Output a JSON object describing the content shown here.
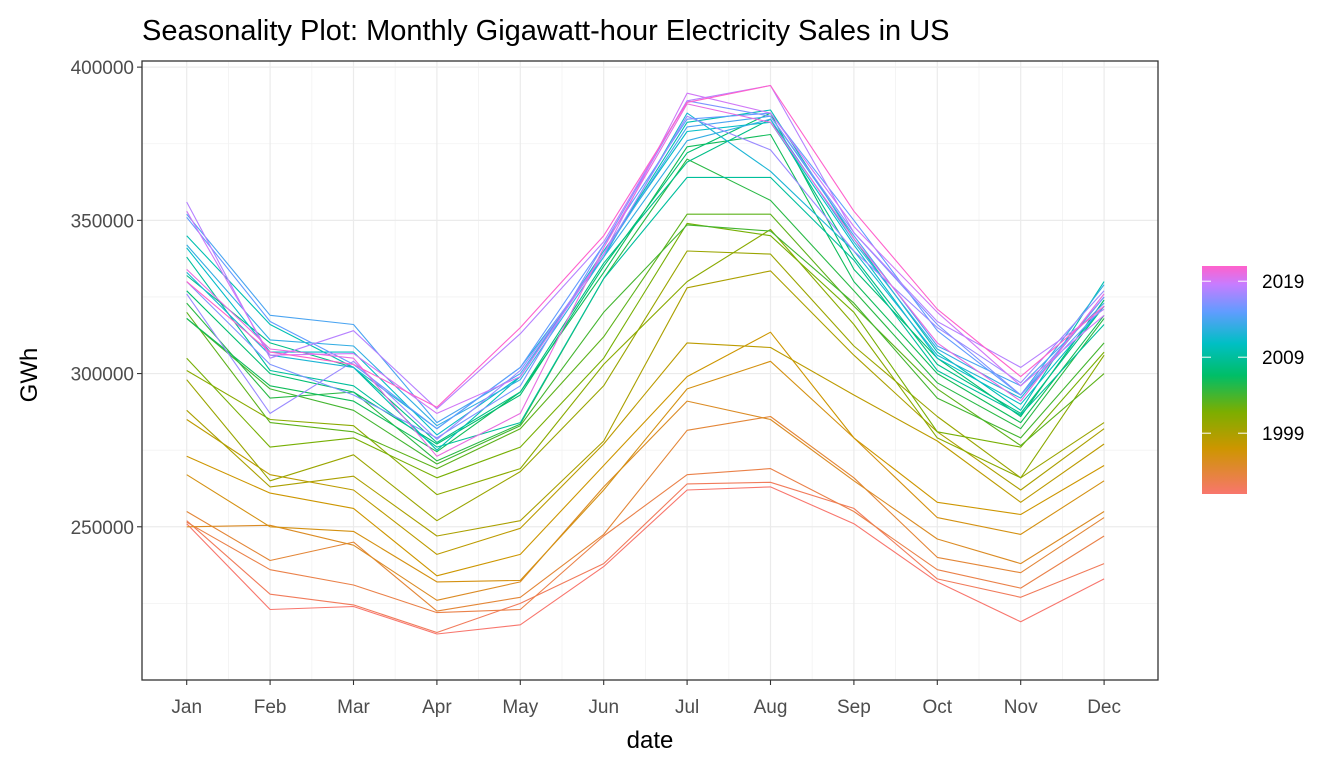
{
  "chart_data": {
    "type": "line",
    "title": "Seasonality Plot: Monthly Gigawatt-hour Electricity Sales in US",
    "xlabel": "date",
    "ylabel": "GWh",
    "categories": [
      "Jan",
      "Feb",
      "Mar",
      "Apr",
      "May",
      "Jun",
      "Jul",
      "Aug",
      "Sep",
      "Oct",
      "Nov",
      "Dec"
    ],
    "ylim": [
      200000,
      402000
    ],
    "yticks": [
      250000,
      300000,
      350000,
      400000
    ],
    "ytick_labels": [
      "250000",
      "300000",
      "350000",
      "400000"
    ],
    "grid": true,
    "legend": {
      "position": "right",
      "type": "colorbar",
      "range": [
        1991,
        2021
      ],
      "ticks": [
        1999,
        2009,
        2019
      ],
      "tick_labels": [
        "1999",
        "2009",
        "2019"
      ]
    },
    "series": [
      {
        "year": 1991,
        "values": [
          251000,
          223000,
          224000,
          215000,
          218000,
          237000,
          262000,
          263000,
          251000,
          232000,
          219000,
          233000
        ]
      },
      {
        "year": 1992,
        "values": [
          252000,
          228000,
          224500,
          215500,
          225000,
          238000,
          264000,
          264500,
          256000,
          233000,
          227000,
          238000
        ]
      },
      {
        "year": 1993,
        "values": [
          251500,
          236000,
          231000,
          222000,
          223000,
          247000,
          267000,
          269000,
          255000,
          236000,
          230000,
          247000
        ]
      },
      {
        "year": 1994,
        "values": [
          255000,
          239000,
          245000,
          222500,
          227000,
          247500,
          281500,
          286000,
          266000,
          240000,
          235000,
          253000
        ]
      },
      {
        "year": 1995,
        "values": [
          250000,
          250500,
          244000,
          226000,
          232000,
          263000,
          291000,
          285000,
          265000,
          246000,
          238000,
          255000
        ]
      },
      {
        "year": 1996,
        "values": [
          267000,
          250000,
          248500,
          232000,
          232500,
          262000,
          295000,
          304000,
          279000,
          253000,
          247500,
          265000
        ]
      },
      {
        "year": 1997,
        "values": [
          273000,
          261000,
          256000,
          234000,
          241000,
          270000,
          299000,
          313500,
          279000,
          258000,
          254000,
          270000
        ]
      },
      {
        "year": 1998,
        "values": [
          285000,
          267000,
          262000,
          241000,
          249500,
          277000,
          310000,
          308500,
          293000,
          278000,
          258000,
          277000
        ]
      },
      {
        "year": 1999,
        "values": [
          288000,
          263000,
          266500,
          247000,
          252000,
          278000,
          328000,
          333500,
          306000,
          281000,
          262000,
          282000
        ]
      },
      {
        "year": 2000,
        "values": [
          298000,
          265000,
          273500,
          252000,
          268000,
          296000,
          340000,
          339000,
          309000,
          286000,
          266000,
          284000
        ]
      },
      {
        "year": 2001,
        "values": [
          301000,
          285000,
          283000,
          260500,
          269000,
          303000,
          330000,
          347000,
          316000,
          279000,
          266000,
          306000
        ]
      },
      {
        "year": 2002,
        "values": [
          305000,
          276000,
          279000,
          266000,
          276000,
          305000,
          349000,
          345000,
          320000,
          281000,
          276000,
          307000
        ]
      },
      {
        "year": 2003,
        "values": [
          320000,
          284000,
          281000,
          269000,
          282000,
          312000,
          352000,
          352000,
          322000,
          295000,
          276500,
          300000
        ]
      },
      {
        "year": 2004,
        "values": [
          318000,
          295000,
          288000,
          270500,
          283000,
          320000,
          348500,
          346500,
          323000,
          292000,
          279000,
          310000
        ]
      },
      {
        "year": 2005,
        "values": [
          323000,
          292000,
          294000,
          271500,
          283500,
          331000,
          370000,
          356500,
          327000,
          297000,
          282000,
          318000
        ]
      },
      {
        "year": 2006,
        "values": [
          318000,
          296000,
          291000,
          274500,
          294000,
          333000,
          374000,
          378000,
          330000,
          300000,
          284000,
          319000
        ]
      },
      {
        "year": 2007,
        "values": [
          327000,
          300000,
          294000,
          277000,
          293000,
          335000,
          372000,
          385000,
          334000,
          305000,
          286000,
          324000
        ]
      },
      {
        "year": 2008,
        "values": [
          332000,
          310000,
          302000,
          277500,
          294000,
          336000,
          369000,
          383000,
          338000,
          303000,
          287000,
          322000
        ]
      },
      {
        "year": 2009,
        "values": [
          338000,
          301000,
          296000,
          276000,
          284000,
          331000,
          364000,
          364000,
          337000,
          301000,
          286500,
          316000
        ]
      },
      {
        "year": 2010,
        "values": [
          345000,
          316000,
          302000,
          275000,
          299000,
          339000,
          382000,
          386000,
          344000,
          307000,
          288000,
          330000
        ]
      },
      {
        "year": 2011,
        "values": [
          341000,
          307000,
          307000,
          280000,
          299000,
          340000,
          379000,
          382000,
          342000,
          305000,
          290000,
          322000
        ]
      },
      {
        "year": 2012,
        "values": [
          333000,
          306000,
          302000,
          282000,
          302000,
          338000,
          385000,
          366000,
          340000,
          306000,
          292000,
          325000
        ]
      },
      {
        "year": 2013,
        "values": [
          342000,
          311000,
          309000,
          283000,
          298000,
          338000,
          376000,
          383000,
          343000,
          308000,
          293000,
          329000
        ]
      },
      {
        "year": 2014,
        "values": [
          352000,
          319000,
          316000,
          284000,
          300000,
          339000,
          380500,
          384000,
          345000,
          309000,
          296000,
          323000
        ]
      },
      {
        "year": 2015,
        "values": [
          351000,
          317000,
          303000,
          282000,
          302000,
          342000,
          383000,
          385000,
          350000,
          314000,
          293000,
          322000
        ]
      },
      {
        "year": 2016,
        "values": [
          330000,
          303000,
          293000,
          279000,
          296000,
          342000,
          389000,
          384000,
          346000,
          316000,
          293000,
          325000
        ]
      },
      {
        "year": 2017,
        "values": [
          326000,
          287000,
          304000,
          278500,
          301000,
          339000,
          384000,
          373000,
          340000,
          315000,
          297000,
          327000
        ]
      },
      {
        "year": 2018,
        "values": [
          356000,
          305000,
          314000,
          288500,
          313000,
          343000,
          389000,
          394000,
          346000,
          317000,
          302000,
          321000
        ]
      },
      {
        "year": 2019,
        "values": [
          353000,
          306000,
          306500,
          287000,
          299000,
          339000,
          391500,
          385000,
          348000,
          320000,
          296000,
          319000
        ]
      },
      {
        "year": 2020,
        "values": [
          334000,
          308000,
          305000,
          273000,
          287000,
          341000,
          388000,
          382000,
          344000,
          310000,
          291000,
          326000
        ]
      },
      {
        "year": 2021,
        "values": [
          330000,
          307000,
          303000,
          289000,
          315000,
          345000,
          388500,
          394000,
          353000,
          321000,
          299000,
          322000
        ]
      }
    ]
  }
}
